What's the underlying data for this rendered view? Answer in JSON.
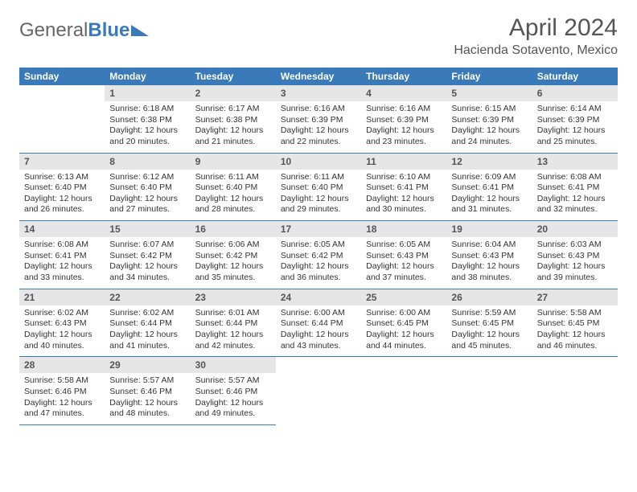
{
  "logo": {
    "general": "General",
    "blue": "Blue"
  },
  "header": {
    "month_title": "April 2024",
    "location": "Hacienda Sotavento, Mexico"
  },
  "colors": {
    "header_bg": "#3a7ab8",
    "header_text": "#ffffff",
    "daynum_bg": "#e6e6e6",
    "rule": "#3a7ab8",
    "logo_blue": "#3a7ab8",
    "logo_gray": "#666666"
  },
  "typography": {
    "month_title_size_pt": 22,
    "location_size_pt": 12,
    "header_cell_size_pt": 9,
    "body_size_pt": 8
  },
  "weekdays": [
    "Sunday",
    "Monday",
    "Tuesday",
    "Wednesday",
    "Thursday",
    "Friday",
    "Saturday"
  ],
  "weeks": [
    [
      {
        "day": null
      },
      {
        "day": "1",
        "sunrise": "Sunrise: 6:18 AM",
        "sunset": "Sunset: 6:38 PM",
        "daylight": "Daylight: 12 hours and 20 minutes."
      },
      {
        "day": "2",
        "sunrise": "Sunrise: 6:17 AM",
        "sunset": "Sunset: 6:38 PM",
        "daylight": "Daylight: 12 hours and 21 minutes."
      },
      {
        "day": "3",
        "sunrise": "Sunrise: 6:16 AM",
        "sunset": "Sunset: 6:39 PM",
        "daylight": "Daylight: 12 hours and 22 minutes."
      },
      {
        "day": "4",
        "sunrise": "Sunrise: 6:16 AM",
        "sunset": "Sunset: 6:39 PM",
        "daylight": "Daylight: 12 hours and 23 minutes."
      },
      {
        "day": "5",
        "sunrise": "Sunrise: 6:15 AM",
        "sunset": "Sunset: 6:39 PM",
        "daylight": "Daylight: 12 hours and 24 minutes."
      },
      {
        "day": "6",
        "sunrise": "Sunrise: 6:14 AM",
        "sunset": "Sunset: 6:39 PM",
        "daylight": "Daylight: 12 hours and 25 minutes."
      }
    ],
    [
      {
        "day": "7",
        "sunrise": "Sunrise: 6:13 AM",
        "sunset": "Sunset: 6:40 PM",
        "daylight": "Daylight: 12 hours and 26 minutes."
      },
      {
        "day": "8",
        "sunrise": "Sunrise: 6:12 AM",
        "sunset": "Sunset: 6:40 PM",
        "daylight": "Daylight: 12 hours and 27 minutes."
      },
      {
        "day": "9",
        "sunrise": "Sunrise: 6:11 AM",
        "sunset": "Sunset: 6:40 PM",
        "daylight": "Daylight: 12 hours and 28 minutes."
      },
      {
        "day": "10",
        "sunrise": "Sunrise: 6:11 AM",
        "sunset": "Sunset: 6:40 PM",
        "daylight": "Daylight: 12 hours and 29 minutes."
      },
      {
        "day": "11",
        "sunrise": "Sunrise: 6:10 AM",
        "sunset": "Sunset: 6:41 PM",
        "daylight": "Daylight: 12 hours and 30 minutes."
      },
      {
        "day": "12",
        "sunrise": "Sunrise: 6:09 AM",
        "sunset": "Sunset: 6:41 PM",
        "daylight": "Daylight: 12 hours and 31 minutes."
      },
      {
        "day": "13",
        "sunrise": "Sunrise: 6:08 AM",
        "sunset": "Sunset: 6:41 PM",
        "daylight": "Daylight: 12 hours and 32 minutes."
      }
    ],
    [
      {
        "day": "14",
        "sunrise": "Sunrise: 6:08 AM",
        "sunset": "Sunset: 6:41 PM",
        "daylight": "Daylight: 12 hours and 33 minutes."
      },
      {
        "day": "15",
        "sunrise": "Sunrise: 6:07 AM",
        "sunset": "Sunset: 6:42 PM",
        "daylight": "Daylight: 12 hours and 34 minutes."
      },
      {
        "day": "16",
        "sunrise": "Sunrise: 6:06 AM",
        "sunset": "Sunset: 6:42 PM",
        "daylight": "Daylight: 12 hours and 35 minutes."
      },
      {
        "day": "17",
        "sunrise": "Sunrise: 6:05 AM",
        "sunset": "Sunset: 6:42 PM",
        "daylight": "Daylight: 12 hours and 36 minutes."
      },
      {
        "day": "18",
        "sunrise": "Sunrise: 6:05 AM",
        "sunset": "Sunset: 6:43 PM",
        "daylight": "Daylight: 12 hours and 37 minutes."
      },
      {
        "day": "19",
        "sunrise": "Sunrise: 6:04 AM",
        "sunset": "Sunset: 6:43 PM",
        "daylight": "Daylight: 12 hours and 38 minutes."
      },
      {
        "day": "20",
        "sunrise": "Sunrise: 6:03 AM",
        "sunset": "Sunset: 6:43 PM",
        "daylight": "Daylight: 12 hours and 39 minutes."
      }
    ],
    [
      {
        "day": "21",
        "sunrise": "Sunrise: 6:02 AM",
        "sunset": "Sunset: 6:43 PM",
        "daylight": "Daylight: 12 hours and 40 minutes."
      },
      {
        "day": "22",
        "sunrise": "Sunrise: 6:02 AM",
        "sunset": "Sunset: 6:44 PM",
        "daylight": "Daylight: 12 hours and 41 minutes."
      },
      {
        "day": "23",
        "sunrise": "Sunrise: 6:01 AM",
        "sunset": "Sunset: 6:44 PM",
        "daylight": "Daylight: 12 hours and 42 minutes."
      },
      {
        "day": "24",
        "sunrise": "Sunrise: 6:00 AM",
        "sunset": "Sunset: 6:44 PM",
        "daylight": "Daylight: 12 hours and 43 minutes."
      },
      {
        "day": "25",
        "sunrise": "Sunrise: 6:00 AM",
        "sunset": "Sunset: 6:45 PM",
        "daylight": "Daylight: 12 hours and 44 minutes."
      },
      {
        "day": "26",
        "sunrise": "Sunrise: 5:59 AM",
        "sunset": "Sunset: 6:45 PM",
        "daylight": "Daylight: 12 hours and 45 minutes."
      },
      {
        "day": "27",
        "sunrise": "Sunrise: 5:58 AM",
        "sunset": "Sunset: 6:45 PM",
        "daylight": "Daylight: 12 hours and 46 minutes."
      }
    ],
    [
      {
        "day": "28",
        "sunrise": "Sunrise: 5:58 AM",
        "sunset": "Sunset: 6:46 PM",
        "daylight": "Daylight: 12 hours and 47 minutes."
      },
      {
        "day": "29",
        "sunrise": "Sunrise: 5:57 AM",
        "sunset": "Sunset: 6:46 PM",
        "daylight": "Daylight: 12 hours and 48 minutes."
      },
      {
        "day": "30",
        "sunrise": "Sunrise: 5:57 AM",
        "sunset": "Sunset: 6:46 PM",
        "daylight": "Daylight: 12 hours and 49 minutes."
      },
      {
        "day": null
      },
      {
        "day": null
      },
      {
        "day": null
      },
      {
        "day": null
      }
    ]
  ]
}
